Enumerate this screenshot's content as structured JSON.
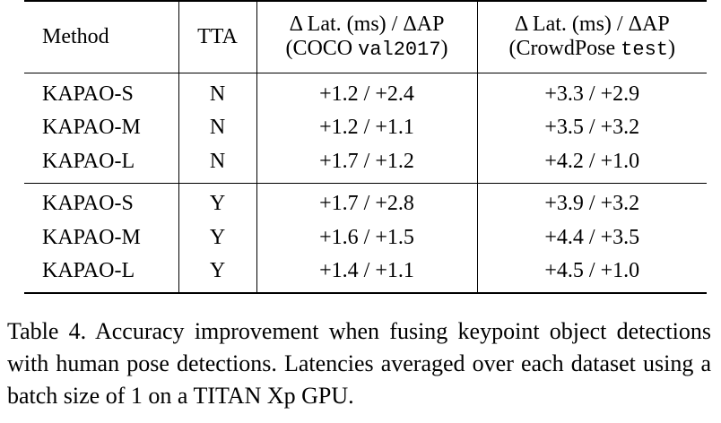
{
  "table": {
    "headers": {
      "method": "Method",
      "tta": "TTA",
      "coco_line1": "Δ Lat. (ms) / ΔAP",
      "coco_line2_pre": "(COCO ",
      "coco_line2_code": "val2017",
      "coco_line2_post": ")",
      "crowd_line1": "Δ Lat. (ms) / ΔAP",
      "crowd_line2_pre": "(CrowdPose ",
      "crowd_line2_code": "test",
      "crowd_line2_post": ")"
    },
    "rows": [
      {
        "method": "KAPAO-S",
        "tta": "N",
        "coco": "+1.2 / +2.4",
        "crowdpose": "+3.3 / +2.9"
      },
      {
        "method": "KAPAO-M",
        "tta": "N",
        "coco": "+1.2 / +1.1",
        "crowdpose": "+3.5 / +3.2"
      },
      {
        "method": "KAPAO-L",
        "tta": "N",
        "coco": "+1.7 / +1.2",
        "crowdpose": "+4.2 / +1.0"
      },
      {
        "method": "KAPAO-S",
        "tta": "Y",
        "coco": "+1.7 / +2.8",
        "crowdpose": "+3.9 / +3.2"
      },
      {
        "method": "KAPAO-M",
        "tta": "Y",
        "coco": "+1.6 / +1.5",
        "crowdpose": "+4.4 / +3.5"
      },
      {
        "method": "KAPAO-L",
        "tta": "Y",
        "coco": "+1.4 / +1.1",
        "crowdpose": "+4.5 / +1.0"
      }
    ]
  },
  "caption": "Table 4. Accuracy improvement when fusing keypoint object detections with human pose detections. Latencies averaged over each dataset using a batch size of 1 on a TITAN Xp GPU."
}
